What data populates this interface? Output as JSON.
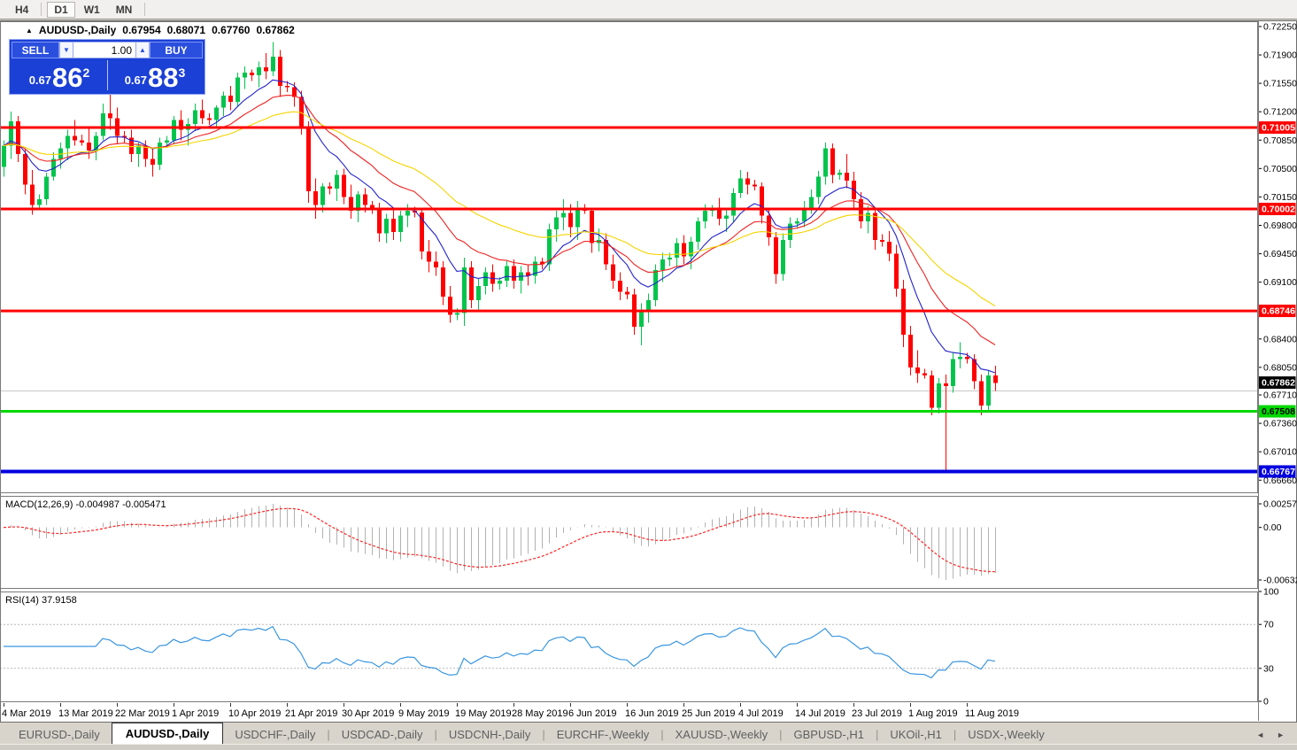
{
  "toolbar": {
    "timeframes": [
      "H4",
      "D1",
      "W1",
      "MN"
    ],
    "active": "D1"
  },
  "title_bar": {
    "symbol_marker": "▲",
    "title": "AUDUSD-,Daily",
    "open": "0.67954",
    "high": "0.68071",
    "low": "0.67760",
    "close": "0.67862"
  },
  "trade_panel": {
    "sell_label": "SELL",
    "buy_label": "BUY",
    "volume": "1.00",
    "spin_down": "▼",
    "spin_up": "▲",
    "sell_price": {
      "small": "0.67",
      "big": "86",
      "sup": "2"
    },
    "buy_price": {
      "small": "0.67",
      "big": "88",
      "sup": "3"
    },
    "panel_color": "#1b40d6"
  },
  "price_axis": {
    "ticks": [
      "0.72250",
      "0.71900",
      "0.71550",
      "0.71200",
      "0.70850",
      "0.70500",
      "0.70150",
      "0.69800",
      "0.69450",
      "0.69100",
      "0.68400",
      "0.68050",
      "0.67710",
      "0.67360",
      "0.67010",
      "0.66660"
    ],
    "badges": [
      {
        "text": "0.71005",
        "price": 0.71005,
        "bg": "#ff0000",
        "fg": "#ffffff"
      },
      {
        "text": "0.70002",
        "price": 0.70002,
        "bg": "#ff0000",
        "fg": "#ffffff"
      },
      {
        "text": "0.68746",
        "price": 0.68746,
        "bg": "#ff0000",
        "fg": "#ffffff"
      },
      {
        "text": "0.67862",
        "price": 0.67862,
        "bg": "#000000",
        "fg": "#ffffff"
      },
      {
        "text": "0.67508",
        "price": 0.67508,
        "bg": "#00d800",
        "fg": "#000000"
      },
      {
        "text": "0.66767",
        "price": 0.66767,
        "bg": "#0000e0",
        "fg": "#ffffff"
      }
    ]
  },
  "panes": {
    "macd": {
      "label": "MACD(12,26,9)",
      "values": "-0.004987 -0.005471",
      "axis": [
        "0.002574",
        "0.00",
        "-0.006326"
      ]
    },
    "rsi": {
      "label": "RSI(14)",
      "value": "37.9158",
      "axis": [
        "100",
        "70",
        "30",
        "0"
      ]
    }
  },
  "tabs": {
    "items": [
      "EURUSD-,Daily",
      "AUDUSD-,Daily",
      "USDCHF-,Daily",
      "USDCAD-,Daily",
      "USDCNH-,Daily",
      "EURCHF-,Weekly",
      "XAUUSD-,Weekly",
      "GBPUSD-,H1",
      "UKOil-,H1",
      "USDX-,Weekly"
    ],
    "active_index": 1,
    "separator": "|",
    "scroll_left": "◄",
    "scroll_right": "►"
  },
  "chart_data": {
    "type": "candlestick",
    "symbol": "AUDUSD",
    "timeframe": "Daily",
    "title": "AUDUSD-,Daily  0.67954 0.68071 0.67760 0.67862",
    "y_axis": {
      "max": 0.72315,
      "min": 0.6651
    },
    "up_color": "#00c44c",
    "down_color": "#ff0000",
    "candles": [
      [
        0.7052,
        0.7085,
        0.704,
        0.7078
      ],
      [
        0.7078,
        0.712,
        0.7062,
        0.7108
      ],
      [
        0.7108,
        0.7115,
        0.7058,
        0.7068
      ],
      [
        0.7068,
        0.7075,
        0.7018,
        0.703
      ],
      [
        0.703,
        0.7048,
        0.6993,
        0.7005
      ],
      [
        0.7005,
        0.7018,
        0.7,
        0.7012
      ],
      [
        0.7012,
        0.7045,
        0.7005,
        0.704
      ],
      [
        0.704,
        0.707,
        0.7035,
        0.7062
      ],
      [
        0.7062,
        0.7082,
        0.705,
        0.7075
      ],
      [
        0.7075,
        0.7098,
        0.706,
        0.709
      ],
      [
        0.709,
        0.711,
        0.7078,
        0.7085
      ],
      [
        0.7085,
        0.7092,
        0.7078,
        0.7082
      ],
      [
        0.7082,
        0.71,
        0.7062,
        0.7072
      ],
      [
        0.7072,
        0.7095,
        0.706,
        0.709
      ],
      [
        0.709,
        0.713,
        0.7085,
        0.7118
      ],
      [
        0.7118,
        0.7168,
        0.7098,
        0.7112
      ],
      [
        0.7112,
        0.7125,
        0.708,
        0.709
      ],
      [
        0.709,
        0.7096,
        0.7082,
        0.7088
      ],
      [
        0.7088,
        0.7098,
        0.7058,
        0.7068
      ],
      [
        0.7068,
        0.7082,
        0.7052,
        0.7078
      ],
      [
        0.7078,
        0.7085,
        0.7052,
        0.7062
      ],
      [
        0.7062,
        0.7075,
        0.704,
        0.7055
      ],
      [
        0.7055,
        0.7088,
        0.7048,
        0.7082
      ],
      [
        0.7082,
        0.709,
        0.7076,
        0.7085
      ],
      [
        0.7085,
        0.7115,
        0.708,
        0.711
      ],
      [
        0.711,
        0.7122,
        0.7085,
        0.7098
      ],
      [
        0.7098,
        0.7112,
        0.7078,
        0.7105
      ],
      [
        0.7105,
        0.713,
        0.7096,
        0.7122
      ],
      [
        0.7122,
        0.7135,
        0.7105,
        0.7112
      ],
      [
        0.7112,
        0.7118,
        0.7104,
        0.711
      ],
      [
        0.711,
        0.7128,
        0.71,
        0.7125
      ],
      [
        0.7125,
        0.7145,
        0.7115,
        0.714
      ],
      [
        0.714,
        0.7152,
        0.7122,
        0.7132
      ],
      [
        0.7132,
        0.7168,
        0.7126,
        0.7162
      ],
      [
        0.7162,
        0.7176,
        0.7148,
        0.7168
      ],
      [
        0.7168,
        0.7172,
        0.7158,
        0.7165
      ],
      [
        0.7165,
        0.7182,
        0.715,
        0.7175
      ],
      [
        0.7175,
        0.7192,
        0.716,
        0.717
      ],
      [
        0.717,
        0.7206,
        0.7164,
        0.7188
      ],
      [
        0.7188,
        0.7196,
        0.7138,
        0.7152
      ],
      [
        0.7152,
        0.7158,
        0.7144,
        0.715
      ],
      [
        0.715,
        0.7156,
        0.7126,
        0.7138
      ],
      [
        0.7138,
        0.7146,
        0.7092,
        0.7102
      ],
      [
        0.7102,
        0.7108,
        0.7008,
        0.7022
      ],
      [
        0.7022,
        0.7038,
        0.6988,
        0.7005
      ],
      [
        0.7005,
        0.7032,
        0.6996,
        0.7028
      ],
      [
        0.7028,
        0.7033,
        0.7018,
        0.7025
      ],
      [
        0.7025,
        0.7048,
        0.701,
        0.7042
      ],
      [
        0.7042,
        0.705,
        0.7006,
        0.7015
      ],
      [
        0.7015,
        0.703,
        0.6988,
        0.6998
      ],
      [
        0.6998,
        0.7022,
        0.6984,
        0.7018
      ],
      [
        0.7018,
        0.7026,
        0.6996,
        0.7005
      ],
      [
        0.7005,
        0.701,
        0.6994,
        0.7
      ],
      [
        0.7,
        0.7008,
        0.696,
        0.697
      ],
      [
        0.697,
        0.6994,
        0.6958,
        0.6988
      ],
      [
        0.6988,
        0.7,
        0.6962,
        0.6972
      ],
      [
        0.6972,
        0.6998,
        0.696,
        0.6992
      ],
      [
        0.6992,
        0.7006,
        0.6978,
        0.6998
      ],
      [
        0.6998,
        0.7003,
        0.699,
        0.6996
      ],
      [
        0.6996,
        0.7,
        0.6938,
        0.6948
      ],
      [
        0.6948,
        0.6962,
        0.6922,
        0.6935
      ],
      [
        0.6935,
        0.6948,
        0.6918,
        0.6928
      ],
      [
        0.6928,
        0.6936,
        0.6882,
        0.6892
      ],
      [
        0.6892,
        0.6905,
        0.686,
        0.687
      ],
      [
        0.687,
        0.6878,
        0.6863,
        0.6872
      ],
      [
        0.6872,
        0.694,
        0.6856,
        0.6928
      ],
      [
        0.6928,
        0.6936,
        0.6878,
        0.6888
      ],
      [
        0.6888,
        0.6914,
        0.6874,
        0.6905
      ],
      [
        0.6905,
        0.6928,
        0.6895,
        0.6922
      ],
      [
        0.6922,
        0.6932,
        0.6898,
        0.6908
      ],
      [
        0.6908,
        0.6916,
        0.6901,
        0.6912
      ],
      [
        0.6912,
        0.6936,
        0.6904,
        0.693
      ],
      [
        0.693,
        0.6938,
        0.6902,
        0.6912
      ],
      [
        0.6912,
        0.693,
        0.6896,
        0.6922
      ],
      [
        0.6922,
        0.6932,
        0.6906,
        0.6918
      ],
      [
        0.6918,
        0.6942,
        0.6908,
        0.6935
      ],
      [
        0.6935,
        0.694,
        0.6926,
        0.6932
      ],
      [
        0.6932,
        0.6982,
        0.6924,
        0.6975
      ],
      [
        0.6975,
        0.6998,
        0.696,
        0.699
      ],
      [
        0.699,
        0.7012,
        0.6974,
        0.6995
      ],
      [
        0.6995,
        0.7006,
        0.6965,
        0.6978
      ],
      [
        0.6978,
        0.701,
        0.6962,
        0.7
      ],
      [
        0.7,
        0.7006,
        0.6994,
        0.6998
      ],
      [
        0.6998,
        0.7002,
        0.6946,
        0.6958
      ],
      [
        0.6958,
        0.6976,
        0.6948,
        0.6962
      ],
      [
        0.6962,
        0.697,
        0.6925,
        0.6932
      ],
      [
        0.6932,
        0.6944,
        0.6902,
        0.6912
      ],
      [
        0.6912,
        0.6922,
        0.6888,
        0.6898
      ],
      [
        0.6898,
        0.6904,
        0.6889,
        0.6895
      ],
      [
        0.6895,
        0.6902,
        0.6845,
        0.6855
      ],
      [
        0.6855,
        0.6884,
        0.6832,
        0.6875
      ],
      [
        0.6875,
        0.6896,
        0.686,
        0.6888
      ],
      [
        0.6888,
        0.6932,
        0.688,
        0.6925
      ],
      [
        0.6925,
        0.6946,
        0.691,
        0.6938
      ],
      [
        0.6938,
        0.6946,
        0.693,
        0.694
      ],
      [
        0.694,
        0.6964,
        0.6928,
        0.6958
      ],
      [
        0.6958,
        0.6968,
        0.6932,
        0.6942
      ],
      [
        0.6942,
        0.6966,
        0.6926,
        0.696
      ],
      [
        0.696,
        0.699,
        0.695,
        0.6985
      ],
      [
        0.6985,
        0.7006,
        0.6976,
        0.6998
      ],
      [
        0.6998,
        0.7005,
        0.6991,
        0.7
      ],
      [
        0.7,
        0.7014,
        0.698,
        0.6988
      ],
      [
        0.6988,
        0.7002,
        0.6972,
        0.6992
      ],
      [
        0.6992,
        0.7026,
        0.6984,
        0.702
      ],
      [
        0.702,
        0.7048,
        0.7014,
        0.7038
      ],
      [
        0.7038,
        0.7046,
        0.7018,
        0.703
      ],
      [
        0.703,
        0.7036,
        0.7023,
        0.7028
      ],
      [
        0.7028,
        0.7033,
        0.6982,
        0.6992
      ],
      [
        0.6992,
        0.7002,
        0.6955,
        0.6965
      ],
      [
        0.6965,
        0.6972,
        0.6908,
        0.692
      ],
      [
        0.692,
        0.697,
        0.6912,
        0.6962
      ],
      [
        0.6962,
        0.699,
        0.6952,
        0.6982
      ],
      [
        0.6982,
        0.6989,
        0.6976,
        0.6985
      ],
      [
        0.6985,
        0.701,
        0.6978,
        0.7002
      ],
      [
        0.7002,
        0.7024,
        0.6994,
        0.7015
      ],
      [
        0.7015,
        0.7047,
        0.7006,
        0.704
      ],
      [
        0.704,
        0.7082,
        0.703,
        0.7075
      ],
      [
        0.7075,
        0.7081,
        0.7032,
        0.7042
      ],
      [
        0.7042,
        0.7049,
        0.7036,
        0.7045
      ],
      [
        0.7045,
        0.7068,
        0.7026,
        0.7035
      ],
      [
        0.7035,
        0.7046,
        0.7002,
        0.7012
      ],
      [
        0.7012,
        0.7021,
        0.6976,
        0.6985
      ],
      [
        0.6985,
        0.7004,
        0.697,
        0.6995
      ],
      [
        0.6995,
        0.7001,
        0.695,
        0.6962
      ],
      [
        0.6962,
        0.6969,
        0.6954,
        0.696
      ],
      [
        0.696,
        0.6973,
        0.6936,
        0.6945
      ],
      [
        0.6945,
        0.6956,
        0.6892,
        0.6902
      ],
      [
        0.6902,
        0.6913,
        0.683,
        0.6845
      ],
      [
        0.6845,
        0.6856,
        0.6795,
        0.6805
      ],
      [
        0.6805,
        0.6826,
        0.6786,
        0.6798
      ],
      [
        0.6798,
        0.6803,
        0.6791,
        0.6795
      ],
      [
        0.6795,
        0.6801,
        0.6746,
        0.6755
      ],
      [
        0.6755,
        0.6792,
        0.6748,
        0.6785
      ],
      [
        0.6785,
        0.6796,
        0.6677,
        0.6782
      ],
      [
        0.6782,
        0.6824,
        0.6774,
        0.6815
      ],
      [
        0.6815,
        0.6836,
        0.6804,
        0.6818
      ],
      [
        0.6818,
        0.6823,
        0.681,
        0.6815
      ],
      [
        0.6815,
        0.6821,
        0.6778,
        0.6788
      ],
      [
        0.6788,
        0.6796,
        0.6746,
        0.6758
      ],
      [
        0.6758,
        0.6801,
        0.675,
        0.6795
      ],
      [
        0.6795,
        0.6807,
        0.6776,
        0.6786
      ]
    ],
    "date_ticks": [
      {
        "label": "4 Mar 2019",
        "index": 0
      },
      {
        "label": "13 Mar 2019",
        "index": 8
      },
      {
        "label": "22 Mar 2019",
        "index": 16
      },
      {
        "label": "1 Apr 2019",
        "index": 24
      },
      {
        "label": "10 Apr 2019",
        "index": 32
      },
      {
        "label": "21 Apr 2019",
        "index": 40
      },
      {
        "label": "30 Apr 2019",
        "index": 48
      },
      {
        "label": "9 May 2019",
        "index": 56
      },
      {
        "label": "19 May 2019",
        "index": 64
      },
      {
        "label": "28 May 2019",
        "index": 72
      },
      {
        "label": "6 Jun 2019",
        "index": 80
      },
      {
        "label": "16 Jun 2019",
        "index": 88
      },
      {
        "label": "25 Jun 2019",
        "index": 96
      },
      {
        "label": "4 Jul 2019",
        "index": 104
      },
      {
        "label": "14 Jul 2019",
        "index": 112
      },
      {
        "label": "23 Jul 2019",
        "index": 120
      },
      {
        "label": "1 Aug 2019",
        "index": 128
      },
      {
        "label": "11 Aug 2019",
        "index": 136
      }
    ],
    "moving_averages": [
      {
        "type": "ema",
        "period": 9,
        "color": "#2222cc",
        "name": "fast"
      },
      {
        "type": "ema",
        "period": 18,
        "color": "#ee2222",
        "name": "medium"
      },
      {
        "type": "ema",
        "period": 36,
        "color": "#f5d400",
        "name": "slow"
      }
    ],
    "hlines": [
      {
        "price": 0.71005,
        "color": "#ff0000",
        "width": 3,
        "name": "resistance-0.71005"
      },
      {
        "price": 0.70002,
        "color": "#ff0000",
        "width": 3,
        "name": "resistance-0.70002"
      },
      {
        "price": 0.68746,
        "color": "#ff0000",
        "width": 3,
        "name": "resistance-0.68746"
      },
      {
        "price": 0.67508,
        "color": "#00d800",
        "width": 3,
        "name": "support-0.67508"
      },
      {
        "price": 0.66767,
        "color": "#0000e0",
        "width": 4,
        "name": "support-0.66767"
      }
    ],
    "silver_line_price": 0.6776,
    "bid_price": 0.67862,
    "indicators": {
      "macd": {
        "fast": 12,
        "slow": 26,
        "signal": 9,
        "current": -0.004987,
        "current_signal": -0.005471,
        "axis_max": 0.002574,
        "axis_min": -0.006326,
        "bar_color": "#b2b2b2",
        "signal_color": "#ff2222"
      },
      "rsi": {
        "period": 14,
        "current": 37.9158,
        "levels": [
          70,
          30
        ],
        "line_color": "#3a96e0"
      }
    }
  }
}
